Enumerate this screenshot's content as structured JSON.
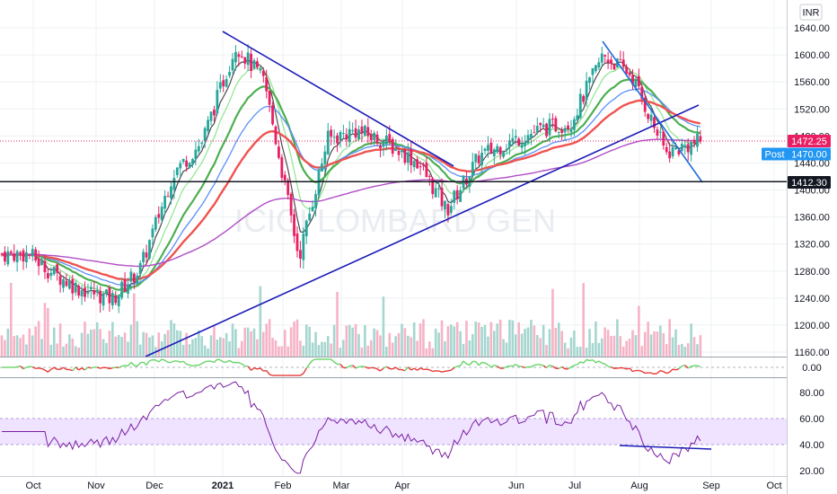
{
  "currency_label": "INR",
  "watermark": "ICICI LOMBARD GEN",
  "colors": {
    "up": "#26a69a",
    "down": "#e91e63",
    "ema_red": "#ef5350",
    "ema_blue": "#5b8ff9",
    "ema_green": "#4caf50",
    "ema_light": "#8ee58e",
    "ema_dark": "#4a4a4a",
    "ema_purple": "#b14ec7",
    "trend": "#1a1ab8",
    "rsi": "#7b1fa2",
    "rsi_band": "#efe3ff",
    "last_price": "#e91e63",
    "post_price": "#2196f3"
  },
  "price_badges": {
    "last": "1472.25",
    "post_label": "Post",
    "post_value": "1470.00",
    "level": "1412.30"
  },
  "chart_data": {
    "type": "line",
    "price_axis": {
      "ticks": [
        "1640.00",
        "1600.00",
        "1560.00",
        "1520.00",
        "1480.00",
        "1440.00",
        "1400.00",
        "1360.00",
        "1320.00",
        "1280.00",
        "1240.00",
        "1200.00",
        "1160.00"
      ],
      "range": [
        1145,
        1655
      ]
    },
    "time_axis": {
      "labels": [
        "Oct",
        "Nov",
        "Dec",
        "2021",
        "Feb",
        "Mar",
        "Apr",
        "Jun",
        "Jul",
        "Aug",
        "Sep",
        "Oct"
      ]
    },
    "approx_close": {
      "dates": [
        "2020-09-21",
        "2020-10-01",
        "2020-10-15",
        "2020-11-01",
        "2020-11-15",
        "2020-12-01",
        "2020-12-15",
        "2021-01-01",
        "2021-01-15",
        "2021-02-01",
        "2021-02-15",
        "2021-03-01",
        "2021-03-15",
        "2021-04-01",
        "2021-04-15",
        "2021-05-01",
        "2021-05-15",
        "2021-06-01",
        "2021-06-15",
        "2021-07-01",
        "2021-07-15",
        "2021-08-01",
        "2021-08-18"
      ],
      "values": [
        1305,
        1280,
        1255,
        1238,
        1285,
        1425,
        1470,
        1615,
        1560,
        1300,
        1475,
        1488,
        1472,
        1440,
        1370,
        1450,
        1470,
        1490,
        1500,
        1600,
        1570,
        1455,
        1472
      ]
    },
    "horizontal_level": 1412.3,
    "oscillator": {
      "ticks": [
        "0.00"
      ]
    },
    "rsi": {
      "ticks": [
        "80.00",
        "60.00",
        "40.00",
        "20.00"
      ],
      "band": [
        40,
        60
      ],
      "range": [
        18,
        92
      ]
    }
  }
}
